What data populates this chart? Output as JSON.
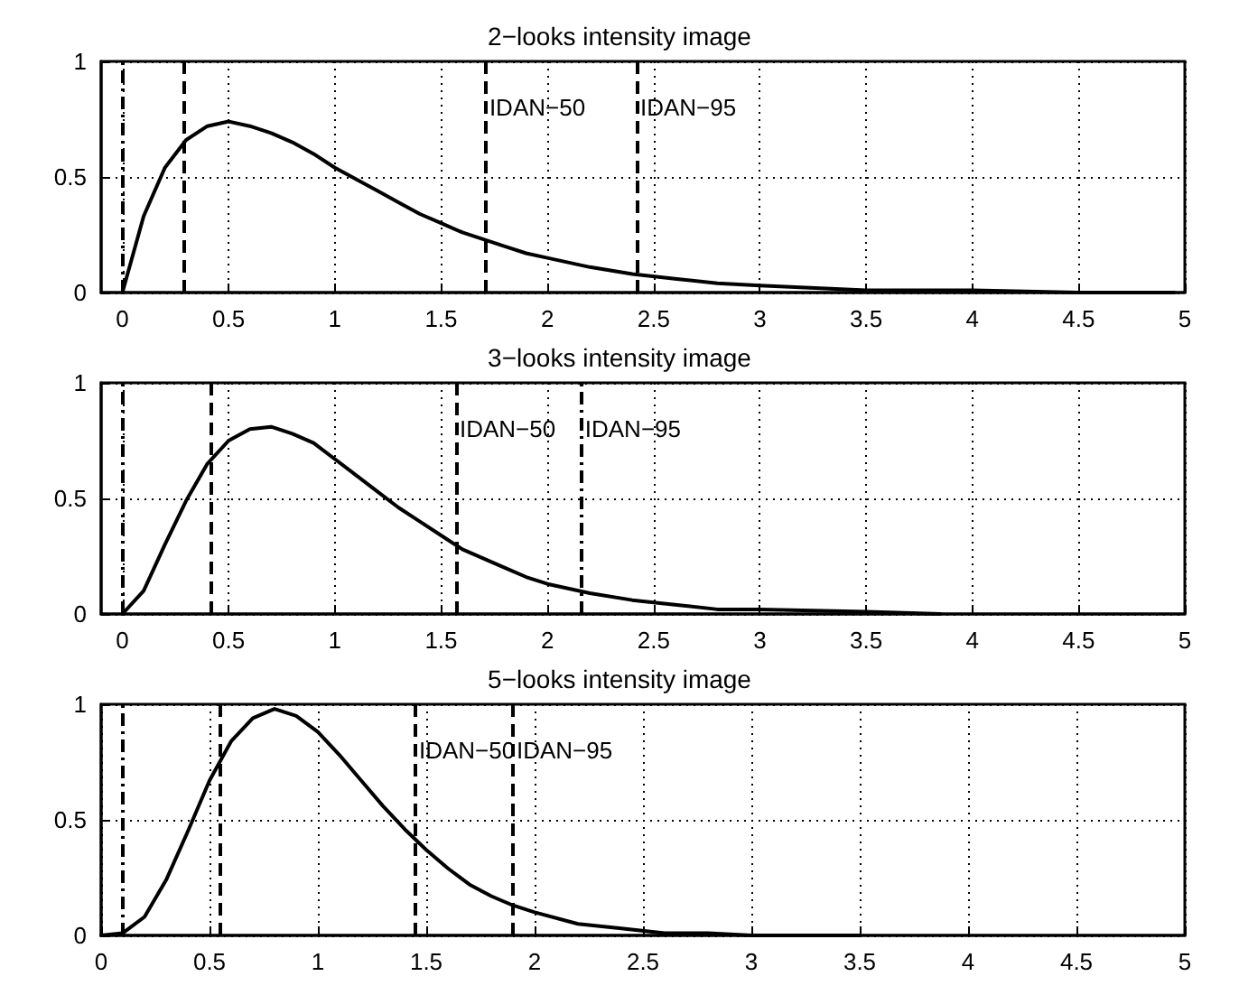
{
  "chart_data": [
    {
      "type": "line",
      "title": "2−looks intensity image",
      "x": [
        0,
        0.1,
        0.2,
        0.3,
        0.4,
        0.5,
        0.6,
        0.7,
        0.8,
        0.9,
        1,
        1.1,
        1.2,
        1.3,
        1.4,
        1.5,
        1.6,
        1.7,
        1.8,
        1.9,
        2,
        2.2,
        2.4,
        2.6,
        2.8,
        3,
        3.5,
        4,
        4.5,
        4.95
      ],
      "series": [
        {
          "color": "#000000",
          "values": [
            0,
            0.33,
            0.54,
            0.66,
            0.72,
            0.74,
            0.72,
            0.69,
            0.65,
            0.6,
            0.54,
            0.49,
            0.44,
            0.39,
            0.34,
            0.3,
            0.26,
            0.23,
            0.2,
            0.17,
            0.15,
            0.11,
            0.08,
            0.06,
            0.04,
            0.03,
            0.01,
            0.01,
            0,
            0
          ]
        }
      ],
      "xlim": [
        -0.1,
        5
      ],
      "ylim": [
        0,
        1
      ],
      "xticks": [
        0,
        0.5,
        1,
        1.5,
        2,
        2.5,
        3,
        3.5,
        4,
        4.5,
        5
      ],
      "yticks": [
        0,
        0.5,
        1
      ],
      "grid": true,
      "line_style": "solid",
      "marker": "none",
      "ref_lines": [
        {
          "axis": "x",
          "value": 0,
          "color": "#000000",
          "line_style": "dashdot"
        },
        {
          "axis": "x",
          "value": 0.29,
          "color": "#000000",
          "line_style": "dashed"
        },
        {
          "axis": "x",
          "value": 1.71,
          "label": "IDAN−50",
          "color": "#000000",
          "line_style": "dashed"
        },
        {
          "axis": "x",
          "value": 2.42,
          "label": "IDAN−95",
          "color": "#000000",
          "line_style": "dashed"
        }
      ]
    },
    {
      "type": "line",
      "title": "3−looks intensity image",
      "x": [
        0,
        0.1,
        0.2,
        0.3,
        0.4,
        0.5,
        0.6,
        0.7,
        0.8,
        0.9,
        1,
        1.1,
        1.2,
        1.3,
        1.4,
        1.5,
        1.6,
        1.7,
        1.8,
        1.9,
        2,
        2.2,
        2.4,
        2.6,
        2.8,
        3,
        3.5,
        3.85
      ],
      "series": [
        {
          "color": "#000000",
          "values": [
            0,
            0.1,
            0.3,
            0.49,
            0.65,
            0.75,
            0.8,
            0.81,
            0.78,
            0.74,
            0.67,
            0.6,
            0.53,
            0.46,
            0.4,
            0.34,
            0.28,
            0.24,
            0.2,
            0.16,
            0.13,
            0.09,
            0.06,
            0.04,
            0.02,
            0.02,
            0.01,
            0
          ]
        }
      ],
      "xlim": [
        -0.1,
        5
      ],
      "ylim": [
        0,
        1
      ],
      "xticks": [
        0,
        0.5,
        1,
        1.5,
        2,
        2.5,
        3,
        3.5,
        4,
        4.5,
        5
      ],
      "yticks": [
        0,
        0.5,
        1
      ],
      "grid": true,
      "line_style": "solid",
      "marker": "none",
      "ref_lines": [
        {
          "axis": "x",
          "value": 0,
          "color": "#000000",
          "line_style": "dashdot"
        },
        {
          "axis": "x",
          "value": 0.42,
          "color": "#000000",
          "line_style": "dashed"
        },
        {
          "axis": "x",
          "value": 1.57,
          "label": "IDAN−50",
          "color": "#000000",
          "line_style": "dashed"
        },
        {
          "axis": "x",
          "value": 2.16,
          "label": "IDAN−95",
          "color": "#000000",
          "line_style": "dashdot"
        }
      ]
    },
    {
      "type": "line",
      "title": "5−looks intensity image",
      "x": [
        0,
        0.1,
        0.2,
        0.3,
        0.4,
        0.5,
        0.6,
        0.7,
        0.8,
        0.9,
        1,
        1.1,
        1.2,
        1.3,
        1.4,
        1.5,
        1.6,
        1.7,
        1.8,
        1.9,
        2,
        2.2,
        2.4,
        2.6,
        2.8,
        3,
        3.5
      ],
      "series": [
        {
          "color": "#000000",
          "values": [
            0,
            0.01,
            0.08,
            0.24,
            0.45,
            0.67,
            0.84,
            0.94,
            0.98,
            0.95,
            0.88,
            0.78,
            0.67,
            0.56,
            0.46,
            0.37,
            0.29,
            0.22,
            0.17,
            0.13,
            0.1,
            0.05,
            0.03,
            0.01,
            0.01,
            0,
            0
          ]
        }
      ],
      "xlim": [
        0,
        5
      ],
      "ylim": [
        0,
        1
      ],
      "xticks": [
        0,
        0.5,
        1,
        1.5,
        2,
        2.5,
        3,
        3.5,
        4,
        4.5,
        5
      ],
      "yticks": [
        0,
        0.5,
        1
      ],
      "grid": true,
      "line_style": "solid",
      "marker": "none",
      "ref_lines": [
        {
          "axis": "x",
          "value": 0.1,
          "color": "#000000",
          "line_style": "dashdot"
        },
        {
          "axis": "x",
          "value": 0.55,
          "color": "#000000",
          "line_style": "dashed"
        },
        {
          "axis": "x",
          "value": 1.45,
          "label": "IDAN−50",
          "color": "#000000",
          "line_style": "dashed"
        },
        {
          "axis": "x",
          "value": 1.9,
          "label": "IDAN−95",
          "color": "#000000",
          "line_style": "dashed"
        }
      ]
    }
  ]
}
